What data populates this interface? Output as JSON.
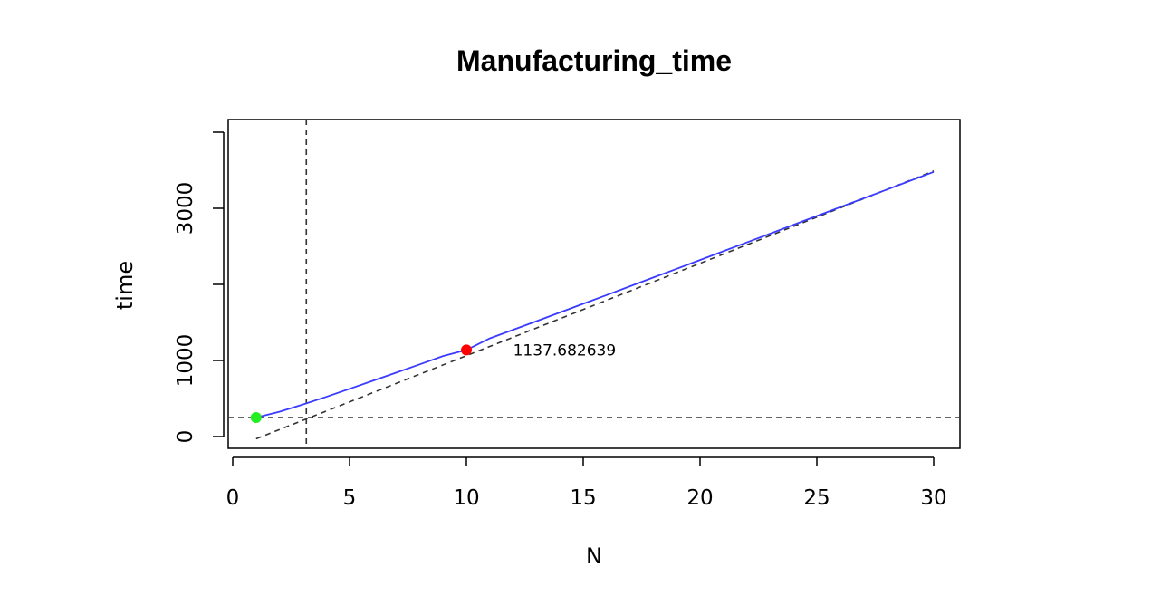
{
  "chart_data": {
    "type": "line",
    "title": "Manufacturing_time",
    "xlabel": "N",
    "ylabel": "time",
    "xlim": [
      0,
      30
    ],
    "ylim": [
      -150,
      4200
    ],
    "x_ticks": [
      0,
      5,
      10,
      15,
      20,
      25,
      30
    ],
    "y_ticks": [
      0,
      1000,
      2000,
      3000,
      4000
    ],
    "y_tick_labels": [
      "0",
      "1000",
      "",
      "3000",
      ""
    ],
    "grid": false,
    "series": [
      {
        "kind": "curve",
        "color": "#3b3bff",
        "style": "solid",
        "x": [
          1,
          2,
          3,
          4,
          5,
          6,
          7,
          8,
          9,
          10,
          11,
          12,
          13,
          14,
          15,
          16,
          17,
          18,
          19,
          20,
          21,
          22,
          23,
          24,
          25,
          26,
          27,
          28,
          29,
          30
        ],
        "y": [
          250,
          326,
          421,
          522,
          627,
          733,
          841,
          949,
          1058,
          1137.682639,
          1290,
          1403,
          1517,
          1631,
          1745,
          1860,
          1975,
          2090,
          2205,
          2320,
          2436,
          2551,
          2667,
          2783,
          2899,
          3015,
          3131,
          3247,
          3363,
          3479
        ]
      },
      {
        "kind": "asymptote",
        "color": "#333333",
        "style": "dashed",
        "x": [
          1,
          30
        ],
        "y": [
          -30,
          3490
        ]
      },
      {
        "kind": "hline",
        "color": "#333333",
        "style": "dashed",
        "y": 250
      },
      {
        "kind": "vline",
        "color": "#333333",
        "style": "dashed",
        "x": 3.15
      }
    ],
    "points": [
      {
        "x": 1,
        "y": 250,
        "color": "#22ee22"
      },
      {
        "x": 10,
        "y": 1137.682639,
        "color": "#ff0000"
      }
    ],
    "annotations": [
      {
        "text": "1137.682639",
        "x": 12,
        "y": 1137.682639
      }
    ]
  }
}
